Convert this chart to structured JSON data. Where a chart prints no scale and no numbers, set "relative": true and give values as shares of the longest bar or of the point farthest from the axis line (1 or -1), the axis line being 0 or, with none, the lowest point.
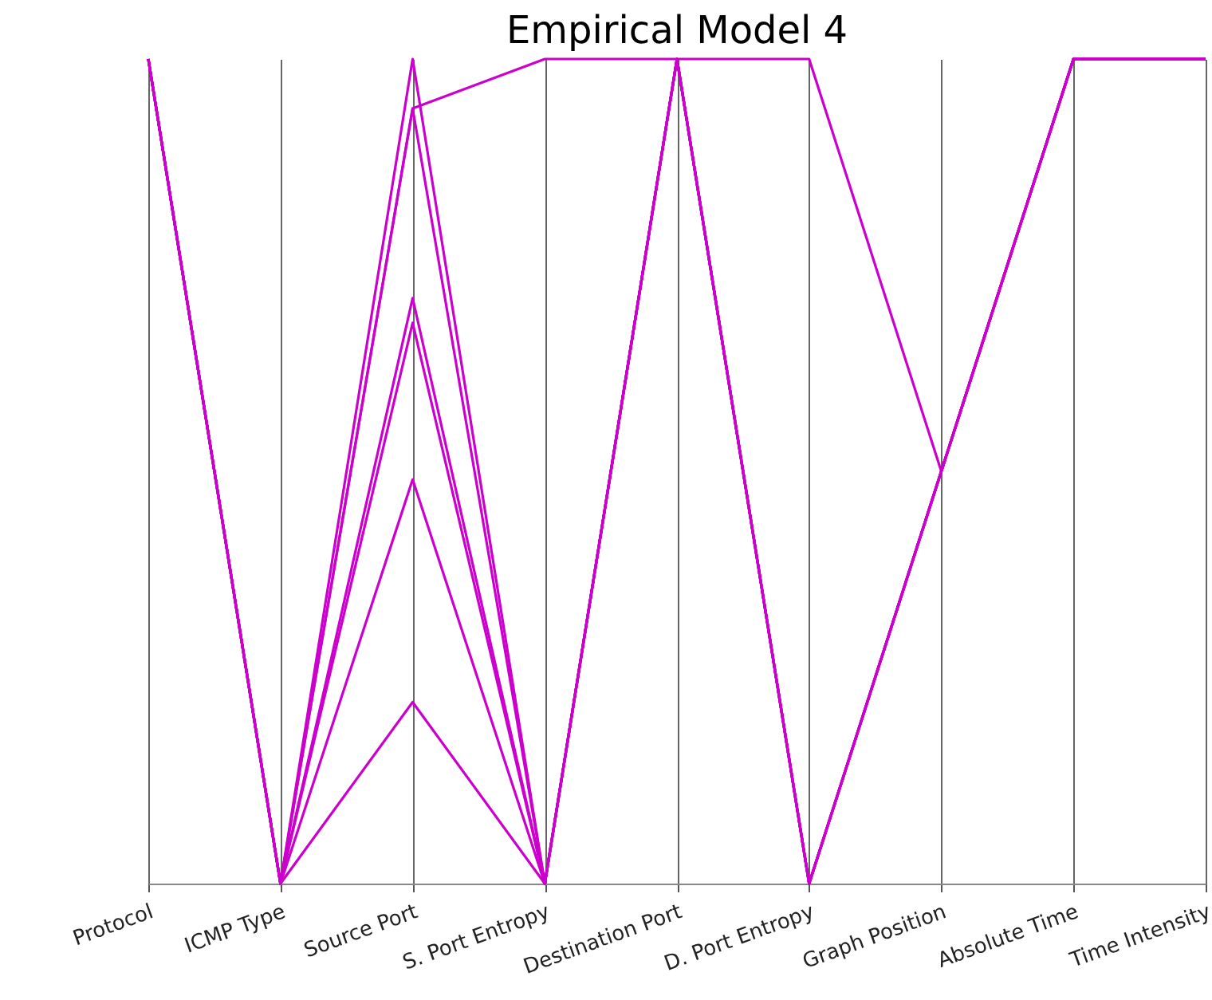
{
  "chart_data": {
    "type": "line",
    "title": "Empirical Model 4",
    "relative": true,
    "grid": "x",
    "categories": [
      "Protocol",
      "ICMP Type",
      "Source Port",
      "S. Port Entropy",
      "Destination Port",
      "D. Port Entropy",
      "Graph Position",
      "Absolute Time",
      "Time Intensity"
    ],
    "series": [
      {
        "color": "#cc00cc",
        "values": [
          1,
          0,
          1,
          0,
          1,
          0,
          0.5,
          1,
          1
        ]
      },
      {
        "color": "#cc00cc",
        "values": [
          1,
          0,
          0.94,
          0,
          1,
          0,
          0.5,
          1,
          1
        ]
      },
      {
        "color": "#cc00cc",
        "values": [
          1,
          0,
          0.94,
          1,
          1,
          1,
          0.5,
          1,
          1
        ]
      },
      {
        "color": "#cc00cc",
        "values": [
          1,
          0,
          0.71,
          0,
          1,
          0,
          0.5,
          1,
          1
        ]
      },
      {
        "color": "#cc00cc",
        "values": [
          1,
          0,
          0.68,
          0,
          1,
          0,
          0.5,
          1,
          1
        ]
      },
      {
        "color": "#cc00cc",
        "values": [
          1,
          0,
          0.49,
          0,
          1,
          0,
          0.5,
          1,
          1
        ]
      },
      {
        "color": "#cc00cc",
        "values": [
          1,
          0,
          0.22,
          0,
          1,
          0,
          0.5,
          1,
          1
        ]
      }
    ]
  }
}
